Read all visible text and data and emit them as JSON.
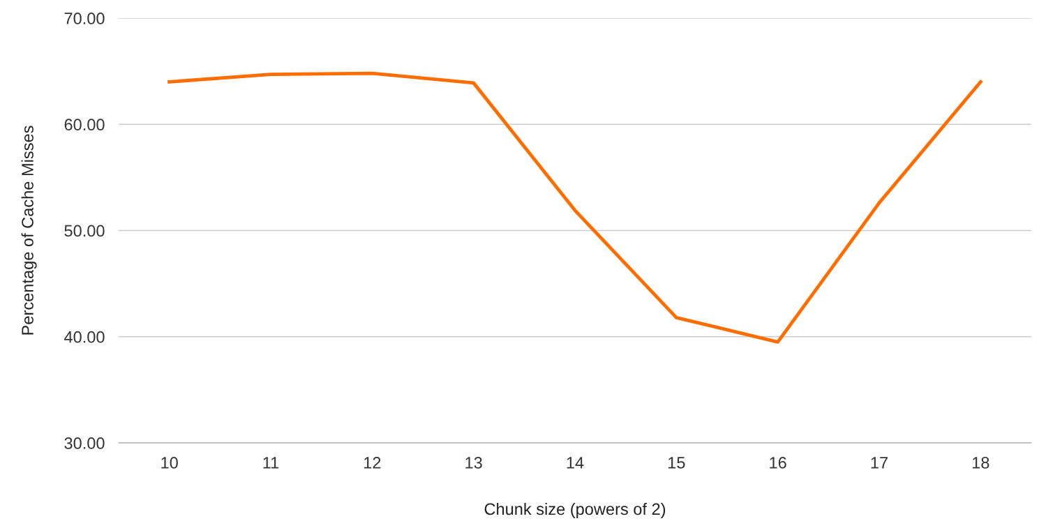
{
  "chart_data": {
    "type": "line",
    "xlabel": "Chunk size (powers of 2)",
    "ylabel": "Percentage of Cache Misses",
    "categories": [
      "10",
      "11",
      "12",
      "13",
      "14",
      "15",
      "16",
      "17",
      "18"
    ],
    "series": [
      {
        "color": "#ff6d01",
        "values": [
          64.0,
          64.7,
          64.8,
          63.9,
          51.9,
          41.8,
          39.5,
          52.6,
          64.0
        ]
      }
    ],
    "ylim": [
      30,
      70
    ],
    "yticks": [
      {
        "value": 30,
        "label": "30.00"
      },
      {
        "value": 40,
        "label": "40.00"
      },
      {
        "value": 50,
        "label": "50.00"
      },
      {
        "value": 60,
        "label": "60.00"
      },
      {
        "value": 70,
        "label": "70.00"
      }
    ],
    "grid": "y",
    "legend": false,
    "marker": "none",
    "line_style": "solid"
  }
}
